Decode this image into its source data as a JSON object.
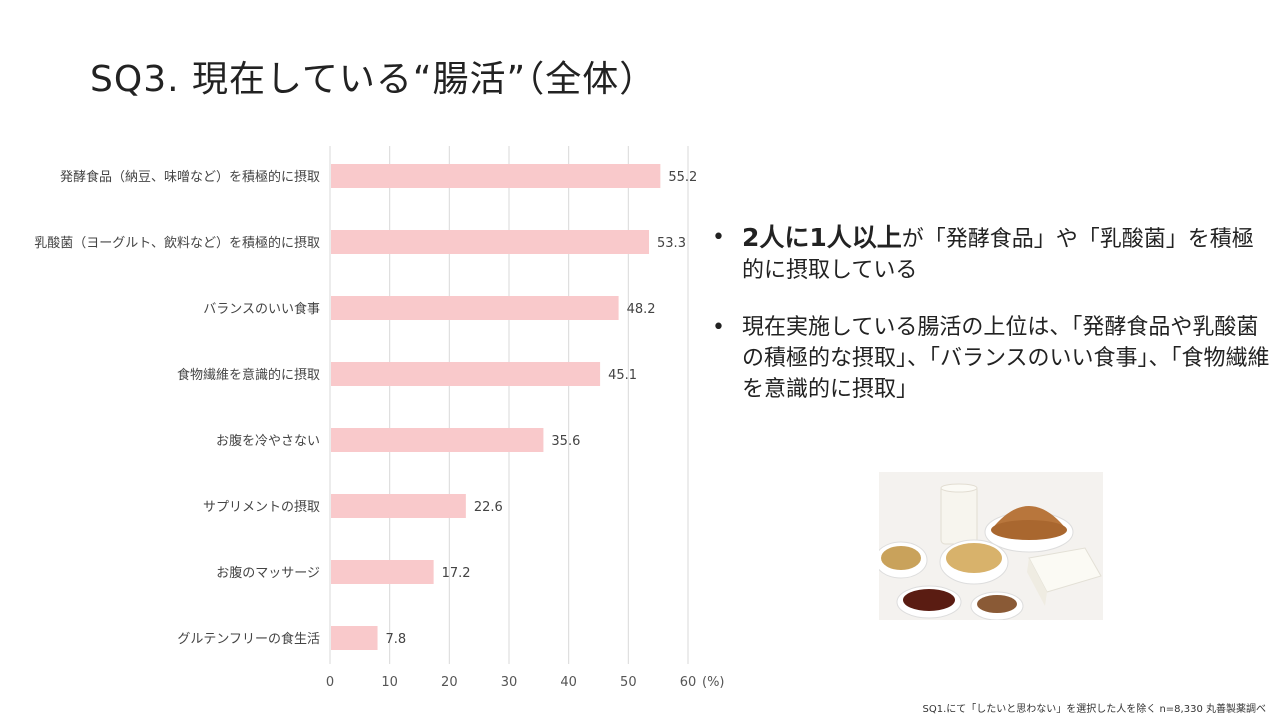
{
  "title": "SQ3.  現在している“腸活”（全体）",
  "chart_data": {
    "type": "bar",
    "orientation": "horizontal",
    "categories": [
      "発酵食品（納豆、味噌など）を積極的に摂取",
      "乳酸菌（ヨーグルト、飲料など）を積極的に摂取",
      "バランスのいい食事",
      "食物繊維を意識的に摂取",
      "お腹を冷やさない",
      "サプリメントの摂取",
      "お腹のマッサージ",
      "グルテンフリーの食生活"
    ],
    "values": [
      55.2,
      53.3,
      48.2,
      45.1,
      35.6,
      22.6,
      17.2,
      7.8
    ],
    "value_labels": [
      "55.2",
      "53.3",
      "48.2",
      "45.1",
      "35.6",
      "22.6",
      "17.2",
      "7.8"
    ],
    "xticks": [
      "0",
      "10",
      "20",
      "30",
      "40",
      "50",
      "60"
    ],
    "xunit": "(%)",
    "xlim": [
      0,
      60
    ],
    "grid": true,
    "bar_color": "#f9c9cb",
    "grid_color": "#d9d9d9"
  },
  "bullets": {
    "b1_strong": "2人に1人以上",
    "b1_rest": "が「発酵食品」や「乳酸菌」を積極的に摂取している",
    "b2": "現在実施している腸活の上位は、「発酵食品や乳酸菌の積極的な摂取」、「バランスのいい食事」、「食物繊維を意識的に摂取」",
    "bullet_char": "•"
  },
  "footnote": "SQ1.にて「したいと思わない」を選択した人を除く n=8,330  丸善製薬調べ"
}
